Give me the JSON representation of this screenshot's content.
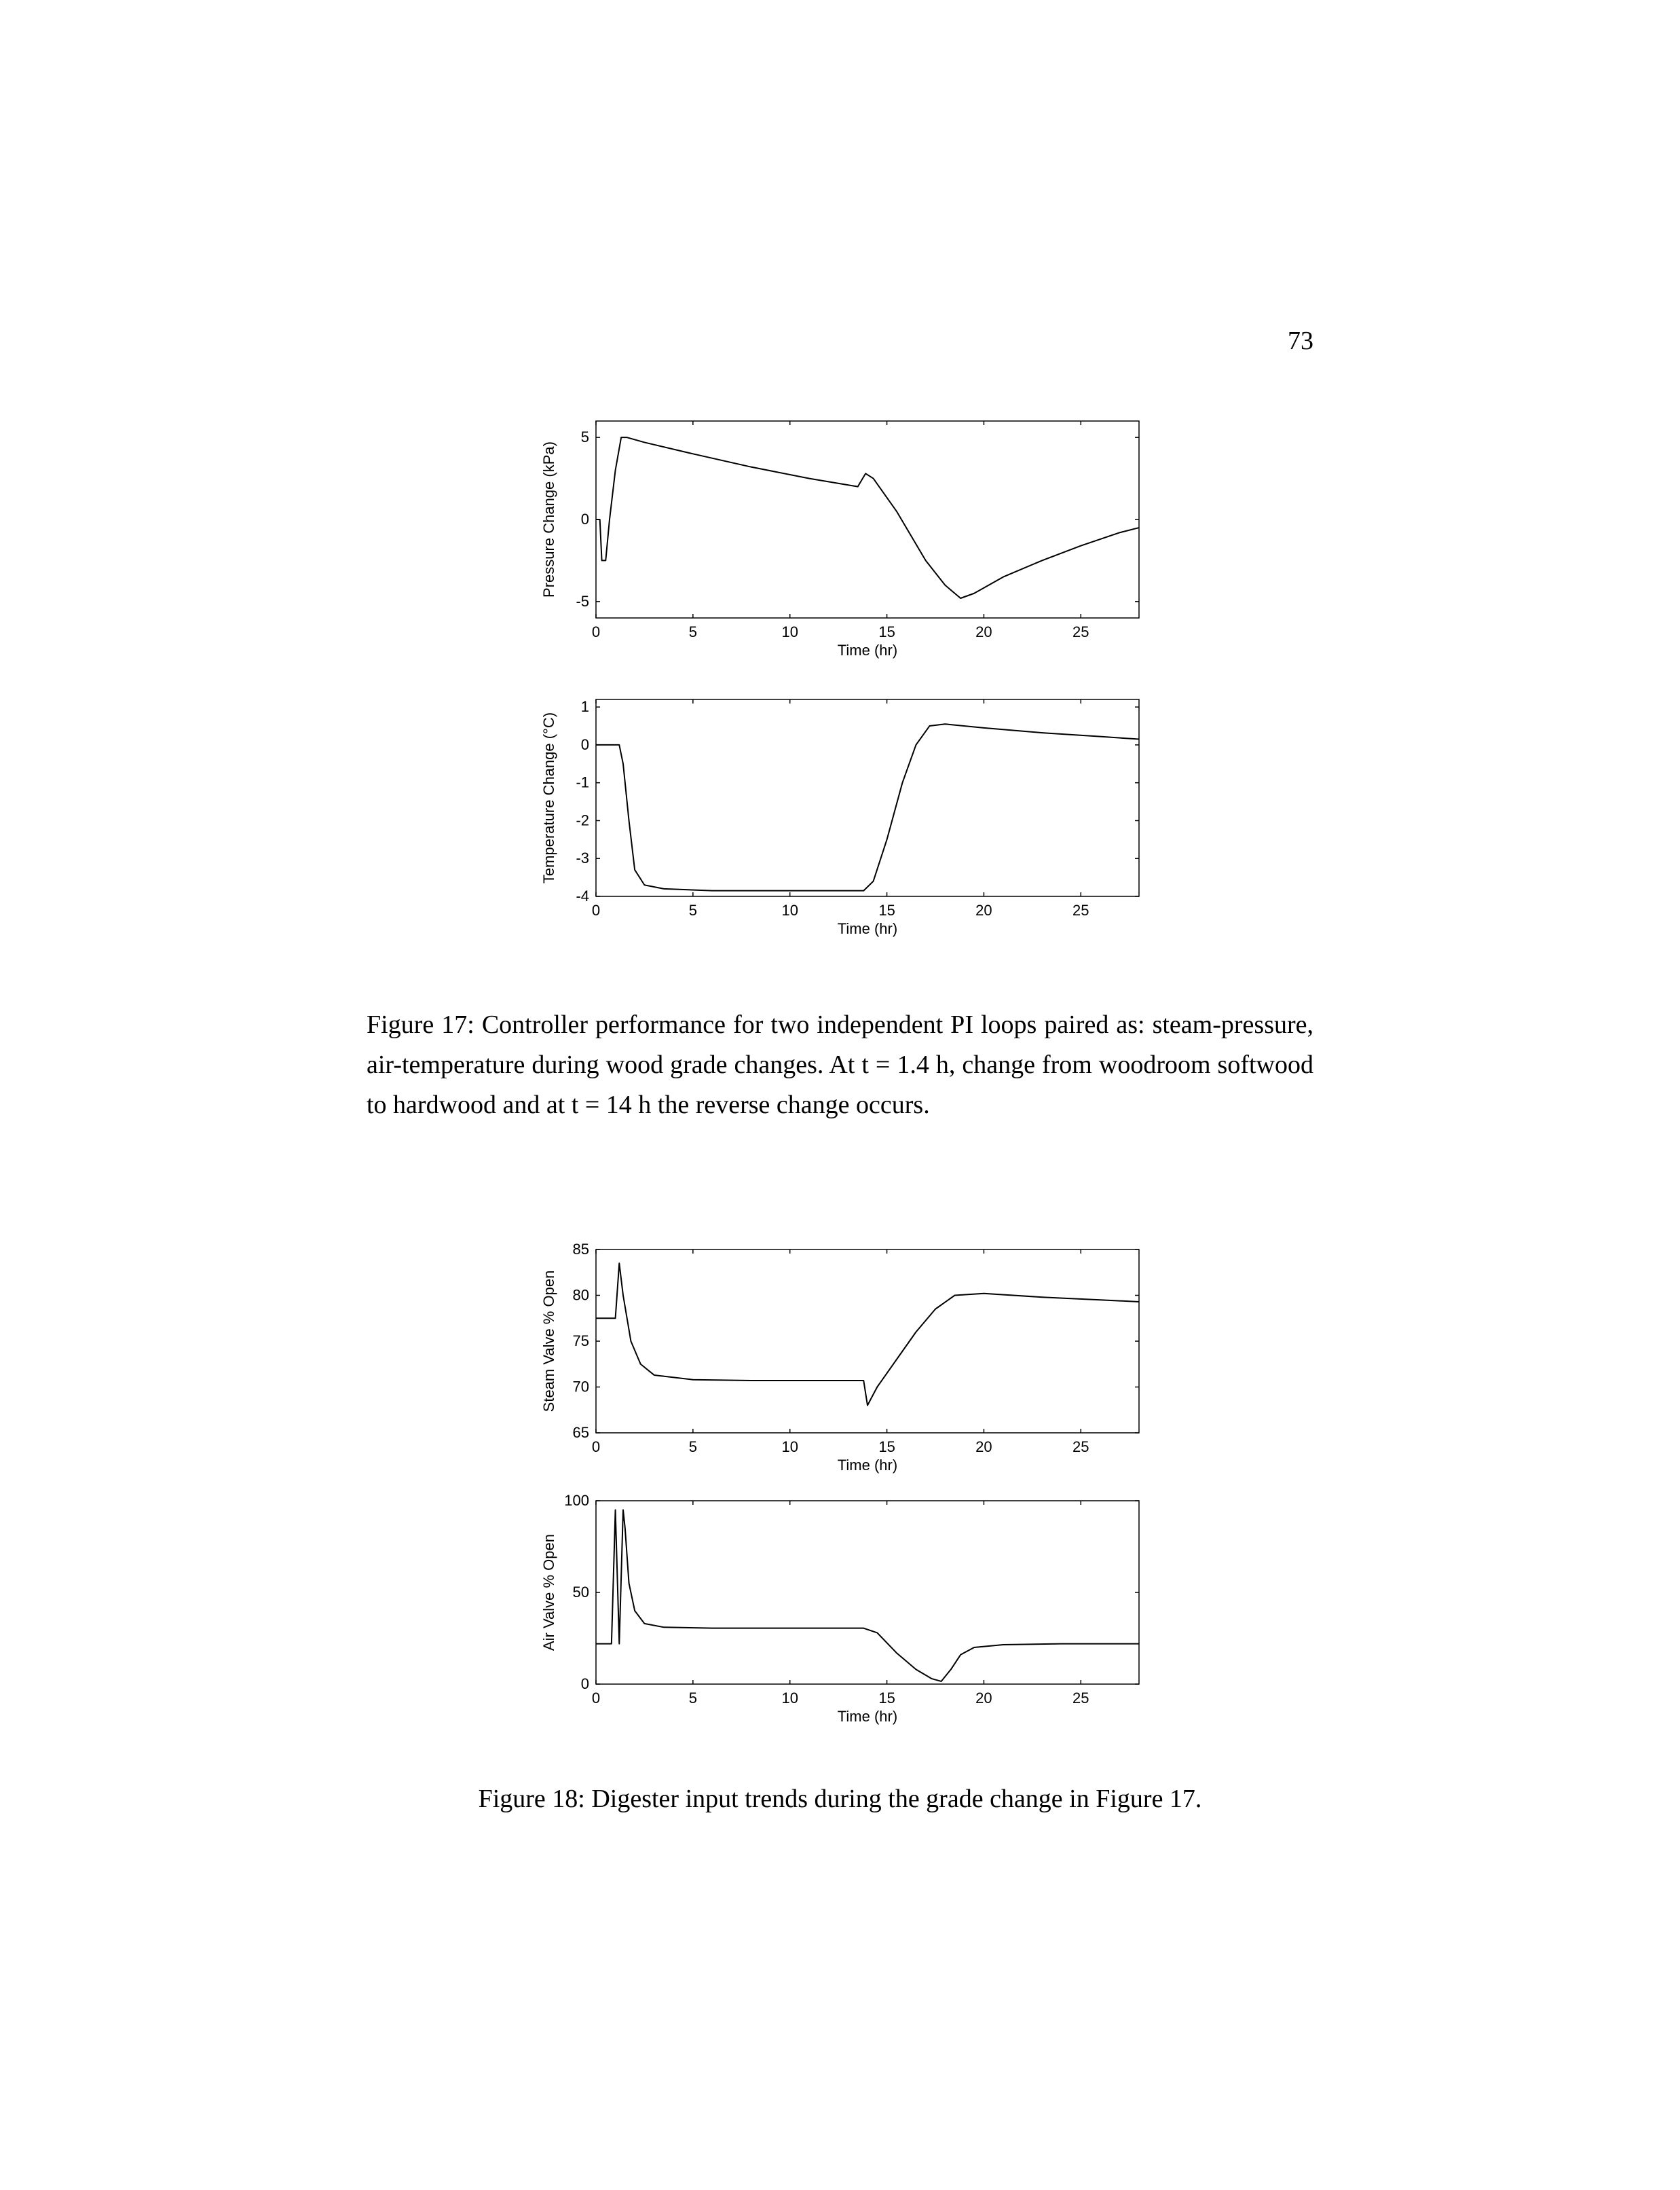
{
  "pageNumber": "73",
  "figure17": {
    "caption": "Figure 17:  Controller performance for two independent PI loops paired as:  steam-pressure, air-temperature during wood grade changes. At t = 1.4 h, change from woodroom softwood to hardwood and at t = 14 h the reverse change occurs.",
    "plots": {
      "top": {
        "ylabel": "Pressure Change (kPa)",
        "xlabel": "Time (hr)",
        "xlim": [
          0,
          28
        ],
        "ylim": [
          -6,
          6
        ],
        "xticks": [
          0,
          5,
          10,
          15,
          20,
          25
        ],
        "yticks": [
          -5,
          0,
          5
        ],
        "series": [
          [
            0,
            0
          ],
          [
            0.2,
            0
          ],
          [
            0.3,
            -2.5
          ],
          [
            0.5,
            -2.5
          ],
          [
            0.7,
            0
          ],
          [
            1.0,
            3
          ],
          [
            1.3,
            5
          ],
          [
            1.6,
            5
          ],
          [
            2.5,
            4.7
          ],
          [
            5,
            4.0
          ],
          [
            8,
            3.2
          ],
          [
            11,
            2.5
          ],
          [
            13.5,
            2.0
          ],
          [
            13.9,
            2.8
          ],
          [
            14.3,
            2.5
          ],
          [
            15.5,
            0.5
          ],
          [
            17,
            -2.5
          ],
          [
            18,
            -4.0
          ],
          [
            18.8,
            -4.8
          ],
          [
            19.5,
            -4.5
          ],
          [
            21,
            -3.5
          ],
          [
            23,
            -2.5
          ],
          [
            25,
            -1.6
          ],
          [
            27,
            -0.8
          ],
          [
            28,
            -0.5
          ]
        ]
      },
      "bottom": {
        "ylabel": "Temperature Change (°C)",
        "xlabel": "Time (hr)",
        "xlim": [
          0,
          28
        ],
        "ylim": [
          -4,
          1.2
        ],
        "xticks": [
          0,
          5,
          10,
          15,
          20,
          25
        ],
        "yticks": [
          -4,
          -3,
          -2,
          -1,
          0,
          1
        ],
        "series": [
          [
            0,
            0
          ],
          [
            1.2,
            0
          ],
          [
            1.4,
            -0.5
          ],
          [
            1.7,
            -2.0
          ],
          [
            2.0,
            -3.3
          ],
          [
            2.5,
            -3.7
          ],
          [
            3.5,
            -3.8
          ],
          [
            6,
            -3.85
          ],
          [
            10,
            -3.85
          ],
          [
            13.8,
            -3.85
          ],
          [
            14.3,
            -3.6
          ],
          [
            15.0,
            -2.5
          ],
          [
            15.8,
            -1.0
          ],
          [
            16.5,
            0.0
          ],
          [
            17.2,
            0.5
          ],
          [
            18.0,
            0.55
          ],
          [
            20,
            0.45
          ],
          [
            23,
            0.32
          ],
          [
            26,
            0.22
          ],
          [
            28,
            0.15
          ]
        ]
      }
    },
    "style": {
      "lineColor": "#000000",
      "lineWidth": 2.0,
      "axisColor": "#000000",
      "axisWidth": 1.5,
      "tickLen": 6,
      "fontSize": 22,
      "fontFamily": "Arial, Helvetica, sans-serif",
      "background": "#ffffff"
    }
  },
  "figure18": {
    "caption": "Figure 18: Digester input trends during the grade change in Figure 17.",
    "plots": {
      "top": {
        "ylabel": "Steam Valve % Open",
        "xlabel": "Time (hr)",
        "xlim": [
          0,
          28
        ],
        "ylim": [
          65,
          85
        ],
        "xticks": [
          0,
          5,
          10,
          15,
          20,
          25
        ],
        "yticks": [
          65,
          70,
          75,
          80,
          85
        ],
        "series": [
          [
            0,
            77.5
          ],
          [
            1.0,
            77.5
          ],
          [
            1.2,
            83.5
          ],
          [
            1.4,
            80
          ],
          [
            1.8,
            75
          ],
          [
            2.3,
            72.5
          ],
          [
            3.0,
            71.3
          ],
          [
            5,
            70.8
          ],
          [
            8,
            70.7
          ],
          [
            11,
            70.7
          ],
          [
            13.8,
            70.7
          ],
          [
            14.0,
            68.0
          ],
          [
            14.5,
            70.0
          ],
          [
            15.5,
            73
          ],
          [
            16.5,
            76
          ],
          [
            17.5,
            78.5
          ],
          [
            18.5,
            80
          ],
          [
            20,
            80.2
          ],
          [
            23,
            79.8
          ],
          [
            26,
            79.5
          ],
          [
            28,
            79.3
          ]
        ]
      },
      "bottom": {
        "ylabel": "Air Valve % Open",
        "xlabel": "Time (hr)",
        "xlim": [
          0,
          28
        ],
        "ylim": [
          0,
          100
        ],
        "xticks": [
          0,
          5,
          10,
          15,
          20,
          25
        ],
        "yticks": [
          0,
          50,
          100
        ],
        "series": [
          [
            0,
            22
          ],
          [
            0.8,
            22
          ],
          [
            1.0,
            95
          ],
          [
            1.2,
            22
          ],
          [
            1.4,
            95
          ],
          [
            1.5,
            85
          ],
          [
            1.7,
            55
          ],
          [
            2.0,
            40
          ],
          [
            2.5,
            33
          ],
          [
            3.5,
            31
          ],
          [
            6,
            30.5
          ],
          [
            10,
            30.5
          ],
          [
            13.8,
            30.5
          ],
          [
            14.5,
            28
          ],
          [
            15.5,
            17
          ],
          [
            16.5,
            8
          ],
          [
            17.3,
            3
          ],
          [
            17.8,
            1.5
          ],
          [
            18.3,
            8
          ],
          [
            18.8,
            16
          ],
          [
            19.5,
            20
          ],
          [
            21,
            21.5
          ],
          [
            24,
            22
          ],
          [
            28,
            22
          ]
        ]
      }
    },
    "style": {
      "lineColor": "#000000",
      "lineWidth": 2.0,
      "axisColor": "#000000",
      "axisWidth": 1.5,
      "tickLen": 6,
      "fontSize": 22,
      "fontFamily": "Arial, Helvetica, sans-serif",
      "background": "#ffffff"
    }
  }
}
